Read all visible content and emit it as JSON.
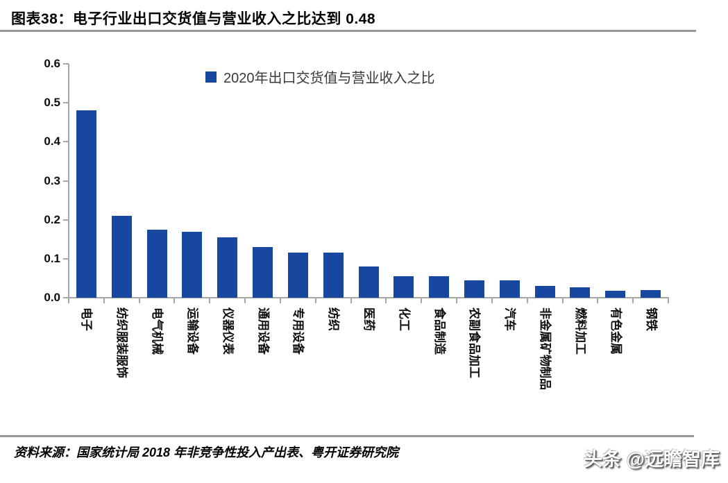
{
  "title": "图表38：电子行业出口交货值与营业收入之比达到 0.48",
  "legend": {
    "label": "2020年出口交货值与营业收入之比"
  },
  "source_note": "资料来源：国家统计局 2018 年非竞争性投入产出表、粤开证券研究院",
  "watermark": "头条 @远瞻智库",
  "colors": {
    "bar": "#17479E",
    "axis": "#A6A6A6",
    "rule": "#95959A",
    "title_text": "#000000",
    "legend_text": "#3A3A3A"
  },
  "chart_data": {
    "type": "bar",
    "title": "",
    "legend": [
      "2020年出口交货值与营业收入之比"
    ],
    "categories": [
      "电子",
      "纺织服装服饰",
      "电气机械",
      "运输设备",
      "仪器仪表",
      "通用设备",
      "专用设备",
      "纺织",
      "医药",
      "化工",
      "食品制造",
      "农副食品加工",
      "汽车",
      "非金属矿物制品",
      "燃料加工",
      "有色金属",
      "钢铁"
    ],
    "values": [
      0.48,
      0.21,
      0.175,
      0.17,
      0.155,
      0.13,
      0.115,
      0.115,
      0.08,
      0.055,
      0.055,
      0.045,
      0.045,
      0.03,
      0.027,
      0.018,
      0.02
    ],
    "xlabel": "",
    "ylabel": "",
    "ylim": [
      0,
      0.6
    ],
    "yticks": [
      0.0,
      0.1,
      0.2,
      0.3,
      0.4,
      0.5,
      0.6
    ],
    "ytick_format": "one-decimal",
    "grid": false,
    "legend_position": "top-center",
    "bar_color": "#17479E"
  }
}
